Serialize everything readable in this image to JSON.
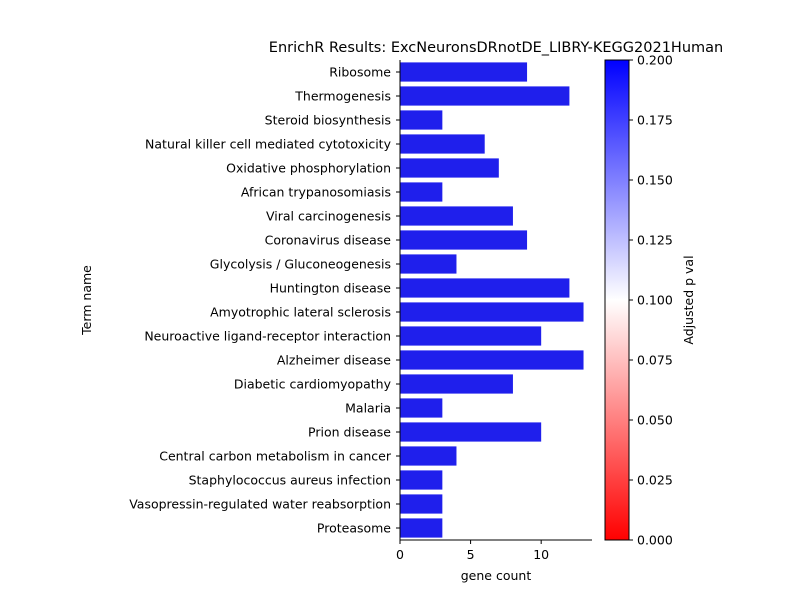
{
  "chart_data": {
    "type": "bar",
    "orientation": "horizontal",
    "title": "EnrichR Results: ExcNeuronsDRnotDE_LIBRY-KEGG2021Human",
    "xlabel": "gene count",
    "ylabel": "Term name",
    "xlim": [
      0,
      13.6
    ],
    "x_ticks": [
      0,
      5,
      10
    ],
    "categories": [
      "Ribosome",
      "Thermogenesis",
      "Steroid biosynthesis",
      "Natural killer cell mediated cytotoxicity",
      "Oxidative phosphorylation",
      "African trypanosomiasis",
      "Viral carcinogenesis",
      "Coronavirus disease",
      "Glycolysis / Gluconeogenesis",
      "Huntington disease",
      "Amyotrophic lateral sclerosis",
      "Neuroactive ligand-receptor interaction",
      "Alzheimer disease",
      "Diabetic cardiomyopathy",
      "Malaria",
      "Prion disease",
      "Central carbon metabolism in cancer",
      "Staphylococcus aureus infection",
      "Vasopressin-regulated water reabsorption",
      "Proteasome"
    ],
    "values": [
      9,
      12,
      3,
      6,
      7,
      3,
      8,
      9,
      4,
      12,
      13,
      10,
      13,
      8,
      3,
      10,
      4,
      3,
      3,
      3
    ],
    "bar_color": "#1f1fec",
    "grid": false,
    "legend": "none",
    "colorbar": {
      "label": "Adjusted p val",
      "range": [
        0,
        0.2
      ],
      "ticks": [
        "0.000",
        "0.025",
        "0.050",
        "0.075",
        "0.100",
        "0.125",
        "0.150",
        "0.175",
        "0.200"
      ],
      "colormap": [
        "#ff0000",
        "#ffffff",
        "#0000ff"
      ]
    }
  }
}
